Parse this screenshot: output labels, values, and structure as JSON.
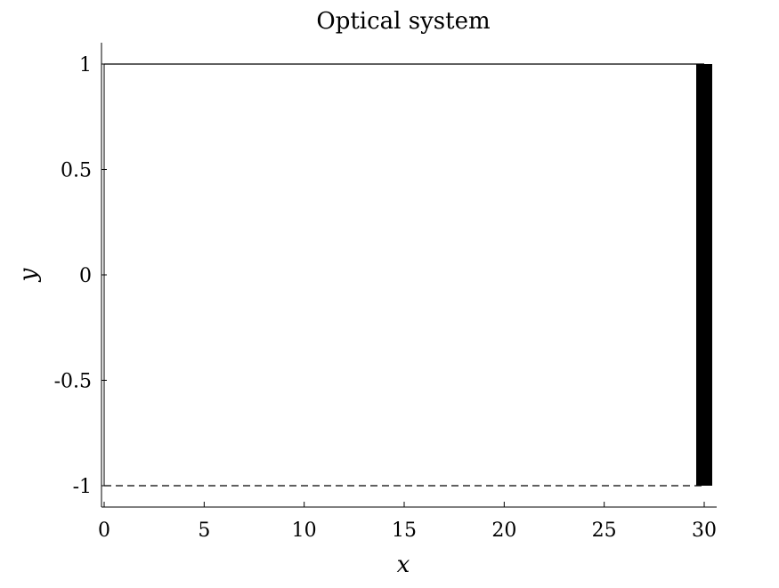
{
  "chart_data": {
    "type": "line",
    "title": "Optical system",
    "xlabel": "x",
    "ylabel": "y",
    "xlim": [
      0,
      30
    ],
    "ylim": [
      -1,
      1
    ],
    "x_ticks": [
      0,
      5,
      10,
      15,
      20,
      25,
      30
    ],
    "x_tick_labels": [
      "0",
      "5",
      "10",
      "15",
      "20",
      "25",
      "30"
    ],
    "y_ticks": [
      1,
      0.5,
      0,
      -0.5,
      -1
    ],
    "y_tick_labels": [
      "1",
      "0.5",
      "0",
      "-0.5",
      "-1"
    ],
    "grid": false,
    "series": [
      {
        "style": "solid",
        "color": "#000000",
        "x": [
          0,
          30
        ],
        "y": [
          1,
          1
        ]
      },
      {
        "style": "dashed",
        "color": "#000000",
        "x": [
          0,
          30
        ],
        "y": [
          -1,
          -1
        ]
      }
    ],
    "elements": [
      {
        "kind": "filled-rect",
        "color": "#000000",
        "x": [
          29.6,
          30.4
        ],
        "y": [
          -1,
          1
        ]
      },
      {
        "kind": "vertical-line",
        "color": "#000000",
        "x": 0,
        "y": [
          -1,
          1
        ]
      }
    ]
  }
}
